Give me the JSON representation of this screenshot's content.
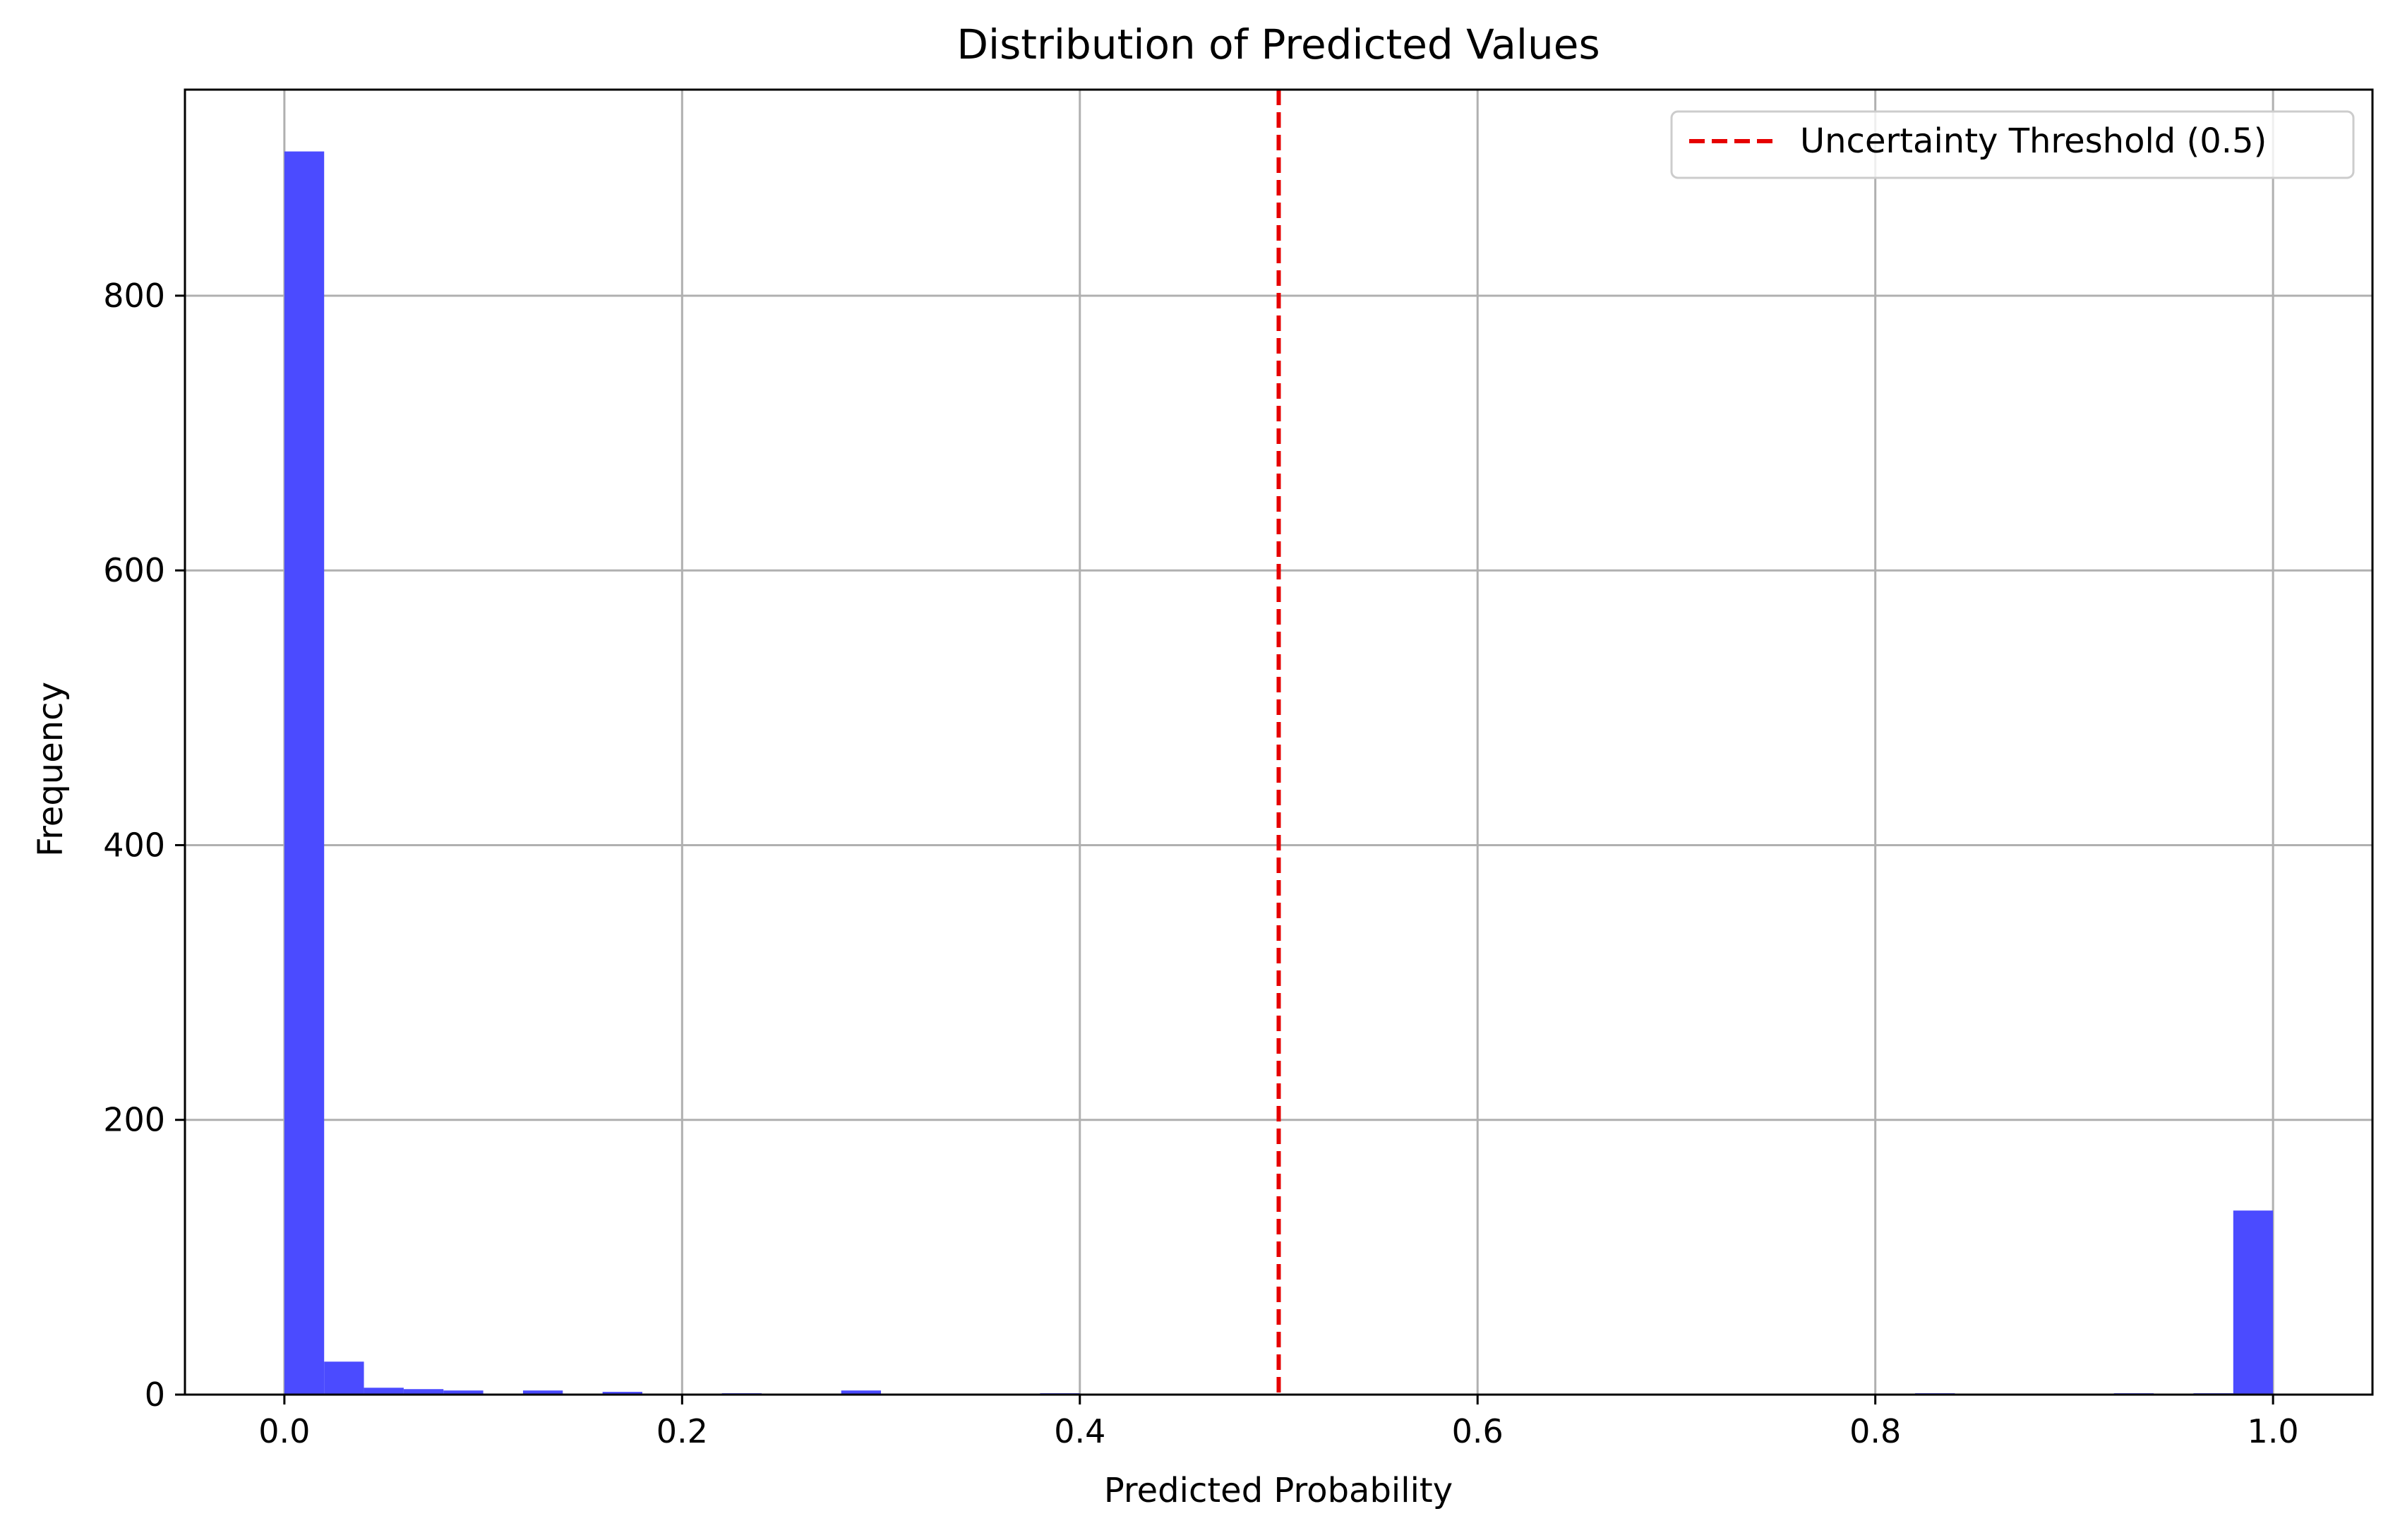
{
  "chart_data": {
    "type": "bar",
    "title": "Distribution of Predicted Values",
    "xlabel": "Predicted Probability",
    "ylabel": "Frequency",
    "xlim": [
      -0.05,
      1.05
    ],
    "ylim": [
      0,
      950
    ],
    "xticks": [
      0.0,
      0.2,
      0.4,
      0.6,
      0.8,
      1.0
    ],
    "xtick_labels": [
      "0.0",
      "0.2",
      "0.4",
      "0.6",
      "0.8",
      "1.0"
    ],
    "yticks": [
      0,
      200,
      400,
      600,
      800
    ],
    "ytick_labels": [
      "0",
      "200",
      "400",
      "600",
      "800"
    ],
    "grid": true,
    "bins": {
      "start": 0.0,
      "end": 1.0,
      "count": 50
    },
    "counts": [
      905,
      24,
      5,
      4,
      3,
      0,
      3,
      0,
      2,
      0,
      0,
      1,
      0,
      0,
      3,
      0,
      0,
      0,
      0,
      1,
      0,
      0,
      0,
      0,
      0,
      0,
      0,
      0,
      0,
      0,
      0,
      0,
      0,
      0,
      0,
      0,
      0,
      0,
      0,
      0,
      0,
      1,
      0,
      0,
      0,
      0,
      1,
      0,
      1,
      134
    ],
    "bar_color": "#4b4bff",
    "threshold": {
      "x": 0.5,
      "color": "#e60000",
      "style": "dashed",
      "label": "Uncertainty Threshold (0.5)"
    },
    "legend": {
      "position": "top-right"
    }
  }
}
